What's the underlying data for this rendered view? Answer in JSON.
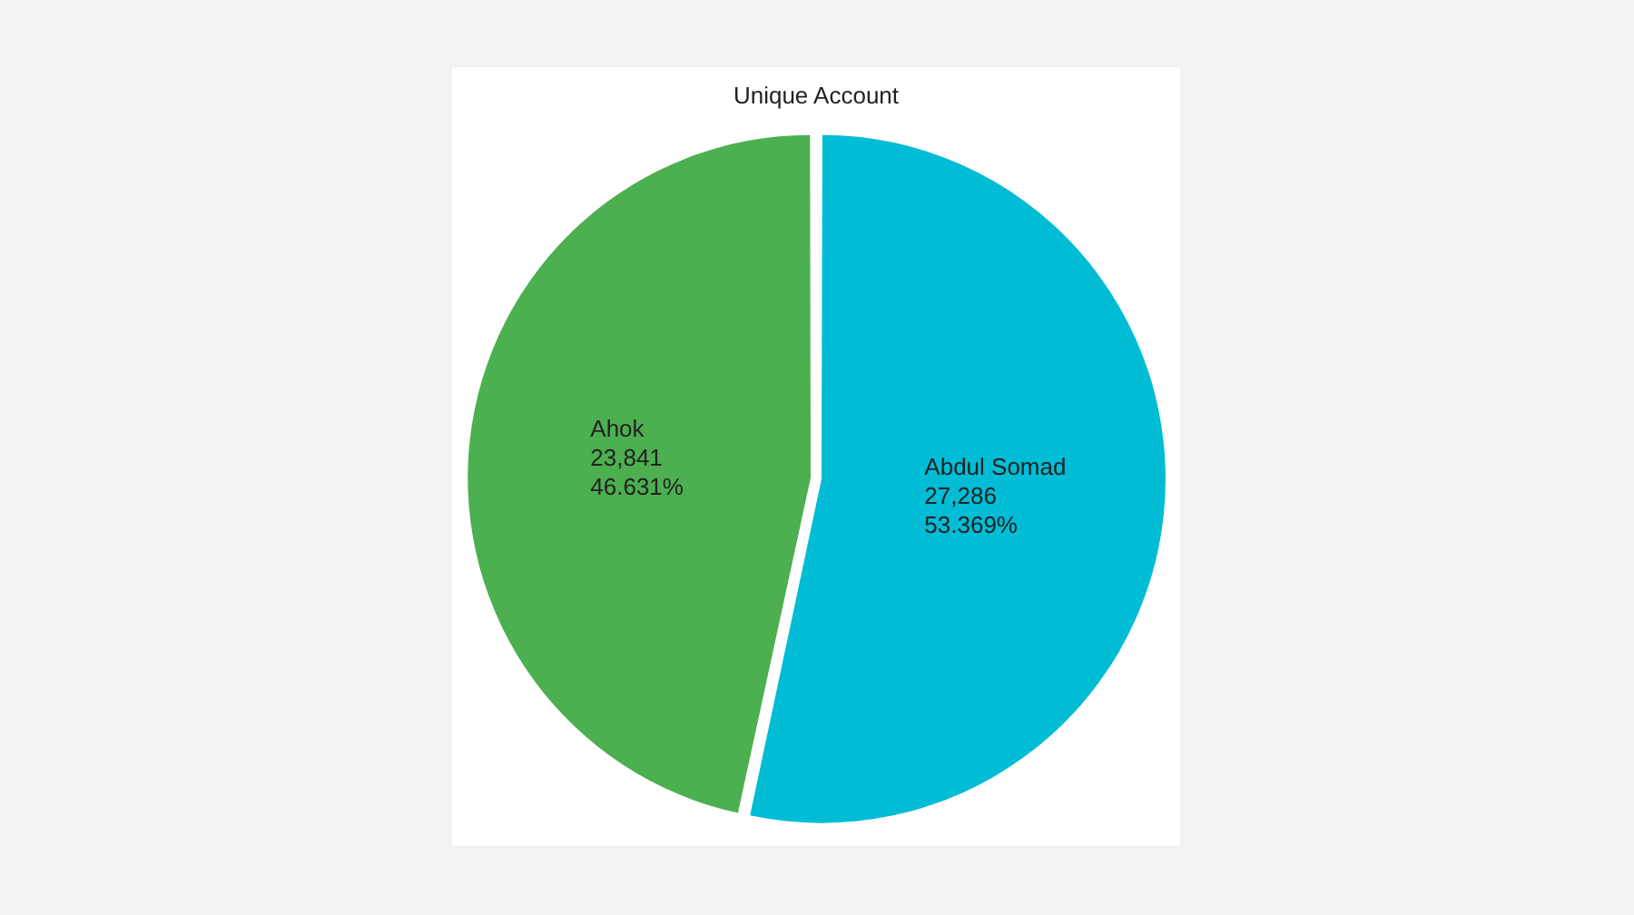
{
  "chart_data": {
    "type": "pie",
    "title": "Unique Account",
    "categories": [
      "Abdul Somad",
      "Ahok"
    ],
    "values": [
      27286,
      23841
    ],
    "colors": [
      "#00bcd4",
      "#4caf50"
    ],
    "value_labels": [
      "27,286\n53.369%",
      "23,841\n46.631%"
    ],
    "legend": false
  }
}
